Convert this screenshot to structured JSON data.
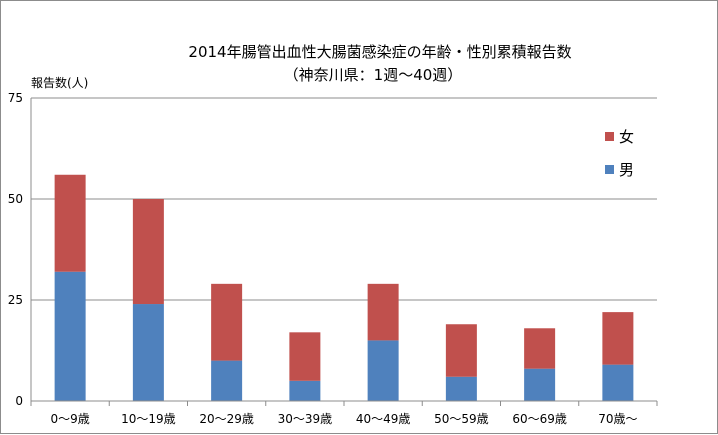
{
  "chart_data": {
    "type": "bar",
    "stacked": true,
    "title": "2014年腸管出血性大腸菌感染症の年齢・性別累積報告数",
    "subtitle": "（神奈川県：1週～40週）",
    "ylabel": "報告数(人)",
    "xlabel": "",
    "ylim": [
      0,
      75
    ],
    "yticks": [
      0,
      25,
      50,
      75
    ],
    "grid": true,
    "legend_position": "right",
    "categories": [
      "0～9歳",
      "10～19歳",
      "20～29歳",
      "30～39歳",
      "40～49歳",
      "50～59歳",
      "60～69歳",
      "70歳～"
    ],
    "series": [
      {
        "name": "男",
        "color": "#4f81bd",
        "values": [
          32,
          24,
          10,
          5,
          15,
          6,
          8,
          9
        ]
      },
      {
        "name": "女",
        "color": "#c0504d",
        "values": [
          24,
          26,
          19,
          12,
          14,
          13,
          10,
          13
        ]
      }
    ]
  }
}
